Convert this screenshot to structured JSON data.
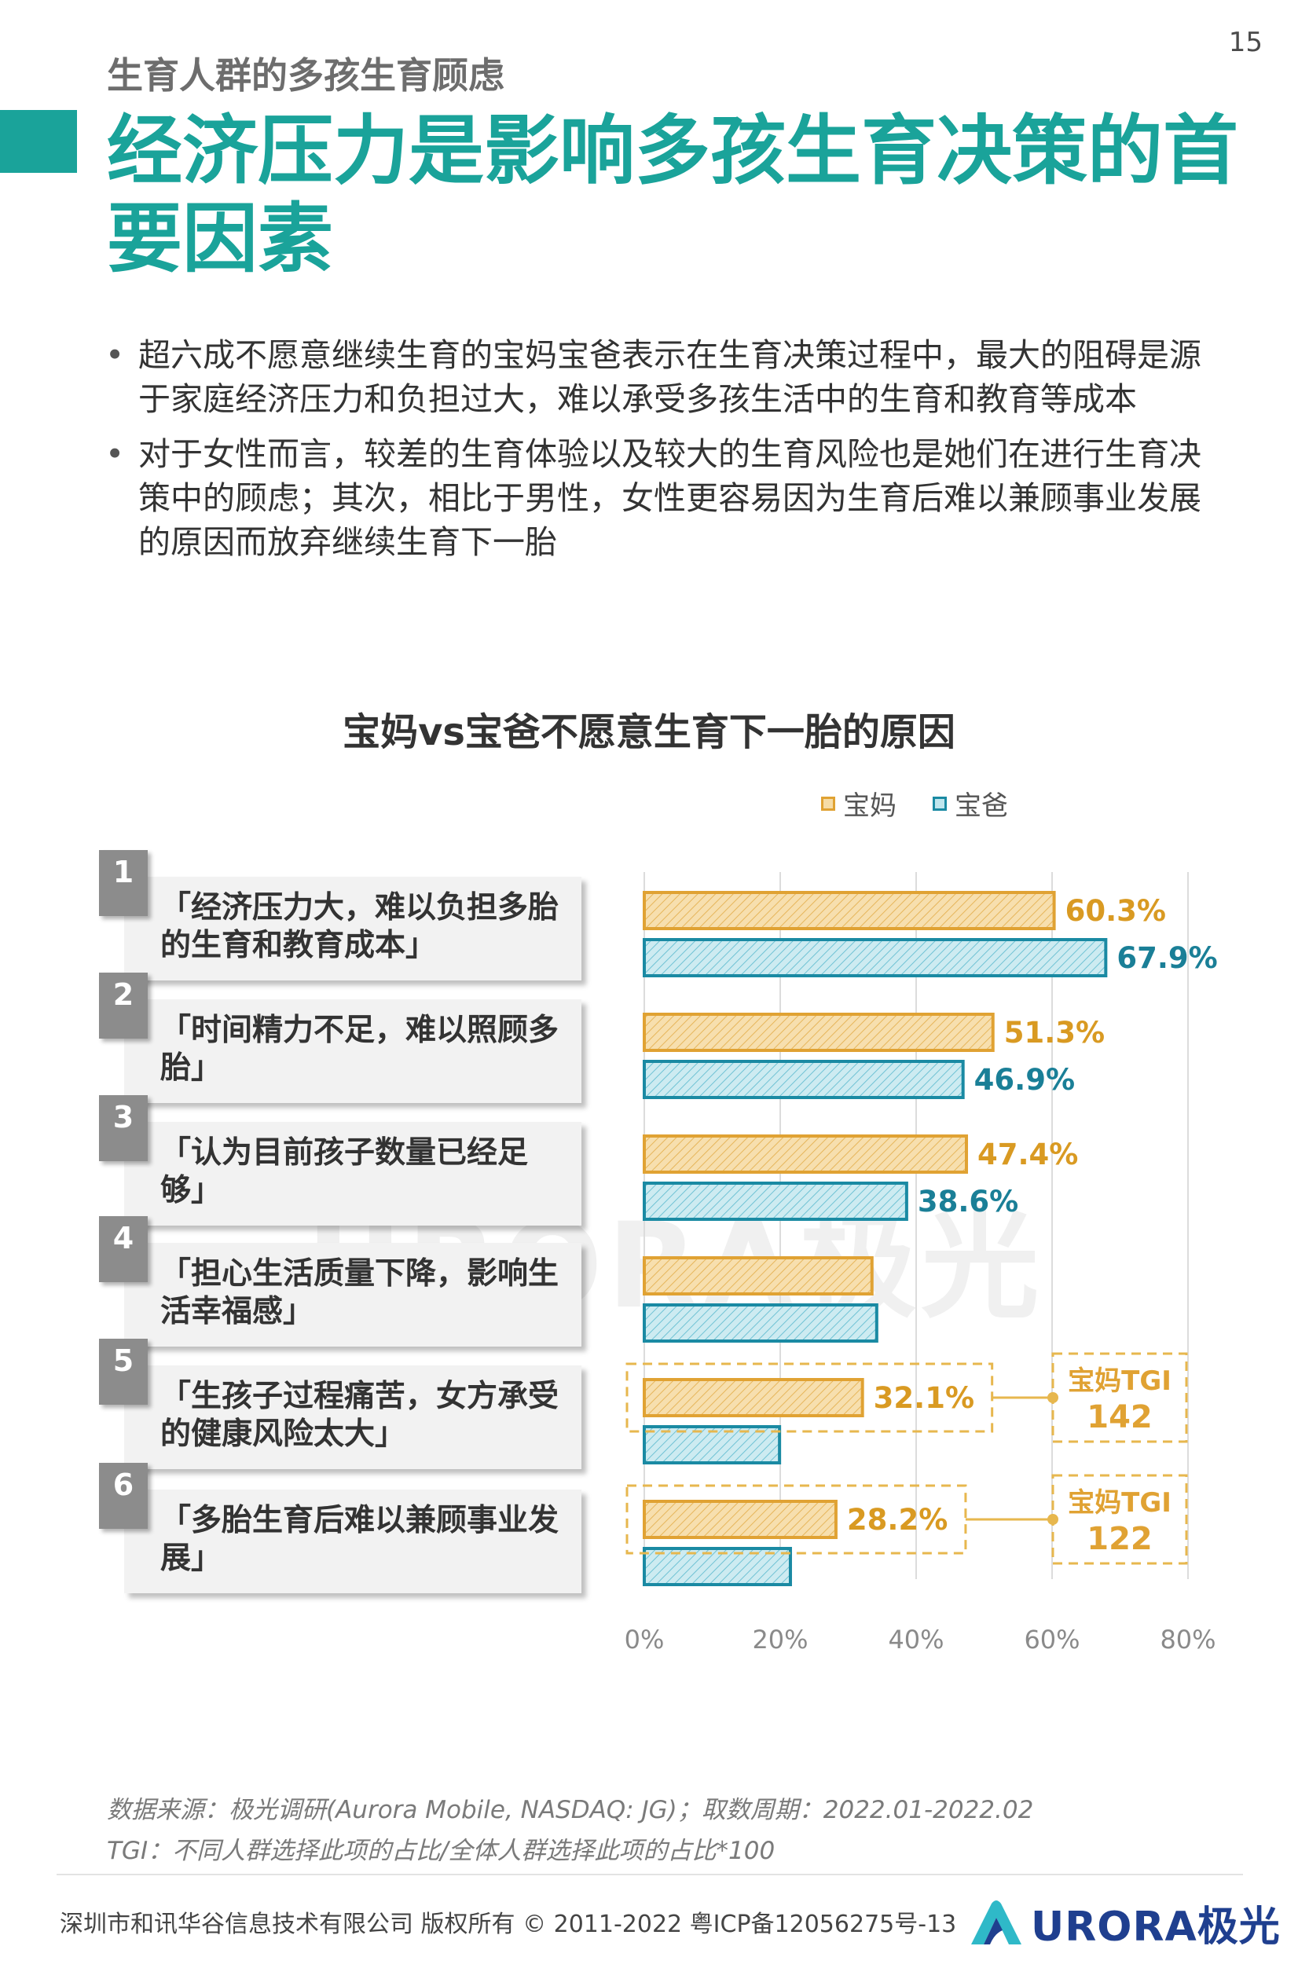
{
  "page_number": "15",
  "section_label": "生育人群的多孩生育顾虑",
  "main_title": "经济压力是影响多孩生育决策的首要因素",
  "bullets": [
    "超六成不愿意继续生育的宝妈宝爸表示在生育决策过程中，最大的阻碍是源于家庭经济压力和负担过大，难以承受多孩生活中的生育和教育等成本",
    "对于女性而言，较差的生育体验以及较大的生育风险也是她们在进行生育决策中的顾虑；其次，相比于男性，女性更容易因为生育后难以兼顾事业发展的原因而放弃继续生育下一胎"
  ],
  "watermark": "URORA极光",
  "chart_data": {
    "type": "bar",
    "orientation": "horizontal",
    "title": "宝妈vs宝爸不愿意生育下一胎的原因",
    "categories": [
      "「经济压力大，难以负担多胎的生育和教育成本」",
      "「时间精力不足，难以照顾多胎」",
      "「认为目前孩子数量已经足够」",
      "「担心生活质量下降，影响生活幸福感」",
      "「生孩子过程痛苦，女方承受的健康风险太大」",
      "「多胎生育后难以兼顾事业发展」"
    ],
    "rank_numbers": [
      "1",
      "2",
      "3",
      "4",
      "5",
      "6"
    ],
    "series": [
      {
        "name": "宝妈",
        "color": "#e0a233",
        "values": [
          60.3,
          51.3,
          47.4,
          33.5,
          32.1,
          28.2
        ],
        "labels": [
          "60.3%",
          "51.3%",
          "47.4%",
          "",
          "32.1%",
          "28.2%"
        ],
        "label_color": "#d99a22"
      },
      {
        "name": "宝爸",
        "color": "#1a8aa3",
        "values": [
          67.9,
          46.9,
          38.6,
          34.2,
          19.9,
          21.5
        ],
        "labels": [
          "67.9%",
          "46.9%",
          "38.6%",
          "",
          "",
          ""
        ],
        "label_color": "#1a7f97"
      }
    ],
    "annotations": [
      {
        "category_index": 4,
        "title": "宝妈TGI",
        "value": "142"
      },
      {
        "category_index": 5,
        "title": "宝妈TGI",
        "value": "122"
      }
    ],
    "xlim": [
      0,
      80
    ],
    "xticks": [
      "0%",
      "20%",
      "40%",
      "60%",
      "80%"
    ],
    "grid": true
  },
  "source_lines": [
    "数据来源：极光调研(Aurora Mobile, NASDAQ: JG)；取数周期：2022.01-2022.02",
    "TGI：不同人群选择此项的占比/全体人群选择此项的占比*100"
  ],
  "footer": "深圳市和讯华谷信息技术有限公司 版权所有 © 2011-2022 粤ICP备12056275号-13",
  "logo_text": "URORA极光"
}
